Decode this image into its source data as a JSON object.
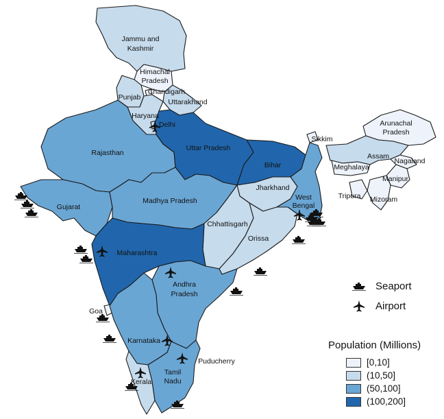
{
  "colors": {
    "pop_0_10": "#eef3fb",
    "pop_10_50": "#c6dbec",
    "pop_50_100": "#6aa6d4",
    "pop_100_200": "#2166ac"
  },
  "states": [
    {
      "key": "jk",
      "label_lines": [
        "Jammu and",
        "Kashmir"
      ],
      "class": "10_50"
    },
    {
      "key": "hp",
      "label_lines": [
        "Himachal",
        "Pradesh"
      ],
      "class": "0_10"
    },
    {
      "key": "pb",
      "label_lines": [
        "Punjab"
      ],
      "class": "10_50"
    },
    {
      "key": "ch",
      "label_lines": [
        "Chandigarh"
      ],
      "class": "0_10"
    },
    {
      "key": "uk",
      "label_lines": [
        "Uttarakhand"
      ],
      "class": "10_50"
    },
    {
      "key": "hr",
      "label_lines": [
        "Haryana"
      ],
      "class": "10_50"
    },
    {
      "key": "dl",
      "label_lines": [
        "Delhi"
      ],
      "class": "10_50"
    },
    {
      "key": "rj",
      "label_lines": [
        "Rajasthan"
      ],
      "class": "50_100"
    },
    {
      "key": "up",
      "label_lines": [
        "Uttar Pradesh"
      ],
      "class": "100_200"
    },
    {
      "key": "br",
      "label_lines": [
        "Bihar"
      ],
      "class": "100_200"
    },
    {
      "key": "sk",
      "label_lines": [
        "Sikkim"
      ],
      "class": "0_10"
    },
    {
      "key": "ar",
      "label_lines": [
        "Arunachal",
        "Pradesh"
      ],
      "class": "0_10"
    },
    {
      "key": "as",
      "label_lines": [
        "Assam"
      ],
      "class": "10_50"
    },
    {
      "key": "ml",
      "label_lines": [
        "Meghalaya"
      ],
      "class": "0_10"
    },
    {
      "key": "nl",
      "label_lines": [
        "Nagaland"
      ],
      "class": "0_10"
    },
    {
      "key": "mn",
      "label_lines": [
        "Manipur"
      ],
      "class": "0_10"
    },
    {
      "key": "mz",
      "label_lines": [
        "Mizoram"
      ],
      "class": "0_10"
    },
    {
      "key": "tr",
      "label_lines": [
        "Tripura"
      ],
      "class": "0_10"
    },
    {
      "key": "gj",
      "label_lines": [
        "Gujarat"
      ],
      "class": "50_100"
    },
    {
      "key": "mp",
      "label_lines": [
        "Madhya Pradesh"
      ],
      "class": "50_100"
    },
    {
      "key": "jh",
      "label_lines": [
        "Jharkhand"
      ],
      "class": "10_50"
    },
    {
      "key": "wb",
      "label_lines": [
        "West",
        "Bengal"
      ],
      "class": "50_100"
    },
    {
      "key": "cg",
      "label_lines": [
        "Chhattisgarh"
      ],
      "class": "10_50"
    },
    {
      "key": "or",
      "label_lines": [
        "Orissa"
      ],
      "class": "10_50"
    },
    {
      "key": "mh",
      "label_lines": [
        "Maharashtra"
      ],
      "class": "100_200"
    },
    {
      "key": "ap",
      "label_lines": [
        "Andhra",
        "Pradesh"
      ],
      "class": "50_100"
    },
    {
      "key": "ga",
      "label_lines": [
        "Goa"
      ],
      "class": "0_10"
    },
    {
      "key": "ka",
      "label_lines": [
        "Karnataka"
      ],
      "class": "50_100"
    },
    {
      "key": "py",
      "label_lines": [
        "Puducherry"
      ],
      "class": "0_10"
    },
    {
      "key": "kl",
      "label_lines": [
        "Kerala"
      ],
      "class": "10_50"
    },
    {
      "key": "tn",
      "label_lines": [
        "Tamil",
        "Nadu"
      ],
      "class": "50_100"
    }
  ],
  "airport_states": [
    "Delhi",
    "Maharashtra",
    "Andhra Pradesh",
    "Karnataka",
    "Tamil Nadu",
    "Kerala",
    "West Bengal"
  ],
  "seaport_count": 16,
  "legend": {
    "title": "Population (Millions)",
    "items": [
      {
        "label": "[0,10]",
        "class": "0_10"
      },
      {
        "label": "(10,50]",
        "class": "10_50"
      },
      {
        "label": "(50,100]",
        "class": "50_100"
      },
      {
        "label": "(100,200]",
        "class": "100_200"
      }
    ]
  },
  "icon_key": {
    "seaport_label": "Seaport",
    "airport_label": "Airport"
  }
}
